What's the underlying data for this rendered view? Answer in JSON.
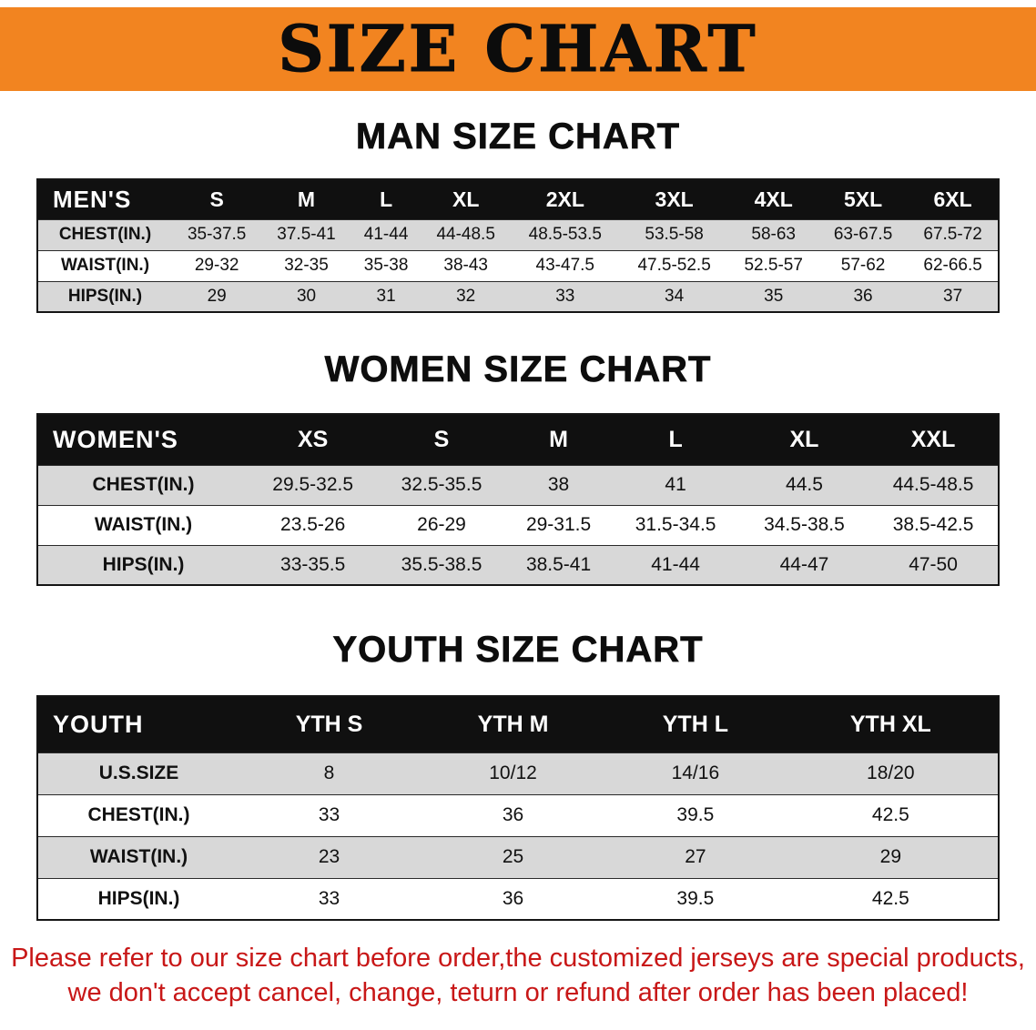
{
  "banner": {
    "title": "SIZE CHART"
  },
  "colors": {
    "banner_bg": "#F28420",
    "header_bg": "#101010",
    "row_alt": "#D8D8D8",
    "note_red": "#C81717"
  },
  "sections": [
    {
      "heading": "MAN SIZE CHART"
    },
    {
      "heading": "WOMEN SIZE CHART"
    },
    {
      "heading": "YOUTH SIZE CHART"
    }
  ],
  "chart_data": [
    {
      "type": "table",
      "title": "MAN SIZE CHART",
      "header": [
        "MEN'S",
        "S",
        "M",
        "L",
        "XL",
        "2XL",
        "3XL",
        "4XL",
        "5XL",
        "6XL"
      ],
      "rows": [
        [
          "CHEST(IN.)",
          "35-37.5",
          "37.5-41",
          "41-44",
          "44-48.5",
          "48.5-53.5",
          "53.5-58",
          "58-63",
          "63-67.5",
          "67.5-72"
        ],
        [
          "WAIST(IN.)",
          "29-32",
          "32-35",
          "35-38",
          "38-43",
          "43-47.5",
          "47.5-52.5",
          "52.5-57",
          "57-62",
          "62-66.5"
        ],
        [
          "HIPS(IN.)",
          "29",
          "30",
          "31",
          "32",
          "33",
          "34",
          "35",
          "36",
          "37"
        ]
      ]
    },
    {
      "type": "table",
      "title": "WOMEN SIZE CHART",
      "header": [
        "WOMEN'S",
        "XS",
        "S",
        "M",
        "L",
        "XL",
        "XXL"
      ],
      "rows": [
        [
          "CHEST(IN.)",
          "29.5-32.5",
          "32.5-35.5",
          "38",
          "41",
          "44.5",
          "44.5-48.5"
        ],
        [
          "WAIST(IN.)",
          "23.5-26",
          "26-29",
          "29-31.5",
          "31.5-34.5",
          "34.5-38.5",
          "38.5-42.5"
        ],
        [
          "HIPS(IN.)",
          "33-35.5",
          "35.5-38.5",
          "38.5-41",
          "41-44",
          "44-47",
          "47-50"
        ]
      ]
    },
    {
      "type": "table",
      "title": "YOUTH SIZE CHART",
      "header": [
        "YOUTH",
        "YTH S",
        "YTH M",
        "YTH L",
        "YTH XL"
      ],
      "rows": [
        [
          "U.S.SIZE",
          "8",
          "10/12",
          "14/16",
          "18/20"
        ],
        [
          "CHEST(IN.)",
          "33",
          "36",
          "39.5",
          "42.5"
        ],
        [
          "WAIST(IN.)",
          "23",
          "25",
          "27",
          "29"
        ],
        [
          "HIPS(IN.)",
          "33",
          "36",
          "39.5",
          "42.5"
        ]
      ]
    }
  ],
  "note": {
    "line1": "Please refer to our size chart before order,the customized jerseys are special products,",
    "line2": "we don't accept cancel, change, teturn or refund after order has been placed!"
  }
}
